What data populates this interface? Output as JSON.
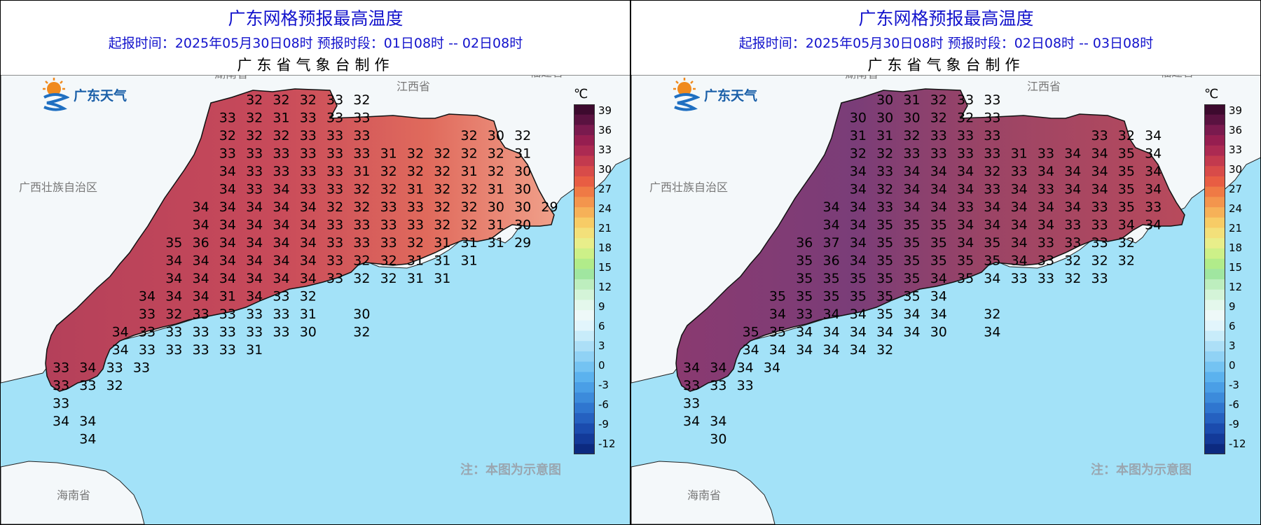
{
  "panels": [
    {
      "title": "广东网格预报最高温度",
      "subtitle": "起报时间：2025年05月30日08时   预报时段：01日08时 -- 02日08时",
      "maker": "广东省气象台制作",
      "logo_text": "广东天气",
      "note": "注：本图为示意图",
      "labels": {
        "hunan": "湖南省",
        "jiangxi": "江西省",
        "fujian": "福建省",
        "guangxi": "广西壮族自治区",
        "hainan": "海南省"
      },
      "temps": [
        [
          "",
          "",
          "",
          "",
          "",
          "",
          "",
          "32",
          "32",
          "32",
          "33",
          "32",
          "",
          "",
          "",
          "",
          "",
          ""
        ],
        [
          "",
          "",
          "",
          "",
          "",
          "",
          "33",
          "32",
          "31",
          "33",
          "33",
          "33",
          "",
          "",
          "",
          "",
          "",
          ""
        ],
        [
          "",
          "",
          "",
          "",
          "",
          "",
          "32",
          "32",
          "32",
          "33",
          "33",
          "33",
          "",
          "",
          "",
          "32",
          "30",
          "32"
        ],
        [
          "",
          "",
          "",
          "",
          "",
          "",
          "33",
          "33",
          "33",
          "33",
          "33",
          "33",
          "31",
          "32",
          "32",
          "32",
          "32",
          "31"
        ],
        [
          "",
          "",
          "",
          "",
          "",
          "",
          "34",
          "33",
          "33",
          "33",
          "33",
          "31",
          "32",
          "32",
          "32",
          "31",
          "32",
          "30"
        ],
        [
          "",
          "",
          "",
          "",
          "",
          "",
          "34",
          "33",
          "34",
          "33",
          "33",
          "32",
          "32",
          "31",
          "32",
          "32",
          "31",
          "30"
        ],
        [
          "",
          "",
          "",
          "",
          "",
          "34",
          "34",
          "34",
          "34",
          "34",
          "32",
          "32",
          "33",
          "33",
          "32",
          "32",
          "30",
          "30",
          "29"
        ],
        [
          "",
          "",
          "",
          "",
          "",
          "34",
          "34",
          "34",
          "34",
          "34",
          "33",
          "33",
          "33",
          "33",
          "32",
          "32",
          "31",
          "30"
        ],
        [
          "",
          "",
          "",
          "",
          "35",
          "36",
          "34",
          "34",
          "34",
          "34",
          "33",
          "33",
          "33",
          "32",
          "31",
          "31",
          "31",
          "29"
        ],
        [
          "",
          "",
          "",
          "",
          "34",
          "34",
          "34",
          "34",
          "34",
          "34",
          "33",
          "32",
          "32",
          "31",
          "31",
          "31",
          ""
        ],
        [
          "",
          "",
          "",
          "",
          "34",
          "34",
          "34",
          "34",
          "34",
          "34",
          "33",
          "32",
          "32",
          "31",
          "31",
          "",
          ""
        ],
        [
          "",
          "",
          "",
          "34",
          "34",
          "34",
          "31",
          "34",
          "33",
          "32",
          "",
          "",
          "",
          "",
          "",
          "",
          ""
        ],
        [
          "",
          "",
          "",
          "33",
          "32",
          "33",
          "33",
          "33",
          "33",
          "31",
          "",
          "30",
          "",
          "",
          "",
          "",
          ""
        ],
        [
          "",
          "",
          "34",
          "33",
          "33",
          "33",
          "33",
          "33",
          "33",
          "30",
          "",
          "32",
          "",
          "",
          "",
          "",
          ""
        ],
        [
          "",
          "",
          "34",
          "33",
          "33",
          "33",
          "33",
          "31",
          "",
          "",
          "",
          "",
          "",
          "",
          "",
          "",
          ""
        ],
        [
          "33",
          "34",
          "33",
          "33",
          "",
          "",
          "",
          "",
          "",
          "",
          "",
          "",
          "",
          "",
          "",
          "",
          ""
        ],
        [
          "33",
          "33",
          "32",
          "",
          "",
          "",
          "",
          "",
          "",
          "",
          "",
          "",
          "",
          "",
          "",
          "",
          ""
        ],
        [
          "33",
          "",
          "",
          "",
          "",
          "",
          "",
          "",
          "",
          "",
          "",
          "",
          "",
          "",
          "",
          "",
          ""
        ],
        [
          "34",
          "34",
          "",
          "",
          "",
          "",
          "",
          "",
          "",
          "",
          "",
          "",
          "",
          "",
          "",
          "",
          ""
        ],
        [
          "",
          "34",
          "",
          "",
          "",
          "",
          "",
          "",
          "",
          "",
          "",
          "",
          "",
          "",
          "",
          "",
          ""
        ]
      ]
    },
    {
      "title": "广东网格预报最高温度",
      "subtitle": "起报时间：2025年05月30日08时   预报时段：02日08时 -- 03日08时",
      "maker": "广东省气象台制作",
      "logo_text": "广东天气",
      "note": "注：本图为示意图",
      "labels": {
        "hunan": "湖南省",
        "jiangxi": "江西省",
        "fujian": "福建省",
        "guangxi": "广西壮族自治区",
        "hainan": "海南省"
      },
      "temps": [
        [
          "",
          "",
          "",
          "",
          "",
          "",
          "",
          "30",
          "31",
          "32",
          "33",
          "33",
          "",
          "",
          "",
          "",
          "",
          ""
        ],
        [
          "",
          "",
          "",
          "",
          "",
          "",
          "30",
          "30",
          "30",
          "32",
          "32",
          "33",
          "",
          "",
          "",
          "",
          "",
          ""
        ],
        [
          "",
          "",
          "",
          "",
          "",
          "",
          "31",
          "31",
          "32",
          "33",
          "33",
          "33",
          "",
          "",
          "",
          "33",
          "32",
          "34"
        ],
        [
          "",
          "",
          "",
          "",
          "",
          "",
          "32",
          "32",
          "33",
          "33",
          "33",
          "33",
          "31",
          "33",
          "34",
          "34",
          "35",
          "34"
        ],
        [
          "",
          "",
          "",
          "",
          "",
          "",
          "34",
          "33",
          "34",
          "34",
          "34",
          "32",
          "33",
          "34",
          "34",
          "34",
          "35",
          "34"
        ],
        [
          "",
          "",
          "",
          "",
          "",
          "",
          "34",
          "32",
          "34",
          "34",
          "34",
          "33",
          "34",
          "33",
          "34",
          "34",
          "35",
          "34"
        ],
        [
          "",
          "",
          "",
          "",
          "",
          "34",
          "34",
          "33",
          "34",
          "34",
          "33",
          "34",
          "34",
          "34",
          "34",
          "33",
          "35",
          "33"
        ],
        [
          "",
          "",
          "",
          "",
          "",
          "34",
          "34",
          "35",
          "35",
          "35",
          "34",
          "34",
          "34",
          "34",
          "33",
          "33",
          "34",
          "34"
        ],
        [
          "",
          "",
          "",
          "",
          "36",
          "37",
          "34",
          "35",
          "35",
          "35",
          "34",
          "35",
          "34",
          "33",
          "33",
          "33",
          "32",
          ""
        ],
        [
          "",
          "",
          "",
          "",
          "35",
          "36",
          "34",
          "35",
          "35",
          "35",
          "35",
          "35",
          "34",
          "33",
          "32",
          "32",
          "32",
          ""
        ],
        [
          "",
          "",
          "",
          "",
          "35",
          "35",
          "35",
          "35",
          "35",
          "34",
          "35",
          "34",
          "33",
          "33",
          "32",
          "33",
          ""
        ],
        [
          "",
          "",
          "",
          "35",
          "35",
          "35",
          "35",
          "35",
          "35",
          "34",
          "",
          "",
          "",
          "",
          "",
          "",
          ""
        ],
        [
          "",
          "",
          "",
          "34",
          "33",
          "34",
          "34",
          "35",
          "34",
          "34",
          "",
          "32",
          "",
          "",
          "",
          "",
          ""
        ],
        [
          "",
          "",
          "35",
          "35",
          "34",
          "34",
          "34",
          "34",
          "34",
          "30",
          "",
          "34",
          "",
          "",
          "",
          "",
          ""
        ],
        [
          "",
          "",
          "34",
          "34",
          "34",
          "34",
          "34",
          "32",
          "",
          "",
          "",
          "",
          "",
          "",
          "",
          "",
          ""
        ],
        [
          "34",
          "34",
          "34",
          "34",
          "",
          "",
          "",
          "",
          "",
          "",
          "",
          "",
          "",
          "",
          "",
          "",
          ""
        ],
        [
          "33",
          "33",
          "33",
          "",
          "",
          "",
          "",
          "",
          "",
          "",
          "",
          "",
          "",
          "",
          "",
          "",
          ""
        ],
        [
          "33",
          "",
          "",
          "",
          "",
          "",
          "",
          "",
          "",
          "",
          "",
          "",
          "",
          "",
          "",
          "",
          ""
        ],
        [
          "34",
          "34",
          "",
          "",
          "",
          "",
          "",
          "",
          "",
          "",
          "",
          "",
          "",
          "",
          "",
          "",
          ""
        ],
        [
          "",
          "30",
          "",
          "",
          "",
          "",
          "",
          "",
          "",
          "",
          "",
          "",
          "",
          "",
          "",
          "",
          ""
        ]
      ]
    }
  ],
  "colorbar": {
    "unit": "℃",
    "ticks": [
      "39",
      "36",
      "33",
      "30",
      "27",
      "24",
      "21",
      "18",
      "15",
      "12",
      "9",
      "6",
      "3",
      "0",
      "-3",
      "-6",
      "-9",
      "-12"
    ],
    "colors": [
      "#3d0a2e",
      "#5a1240",
      "#7a1a4e",
      "#961e50",
      "#ac2a52",
      "#c33a4e",
      "#d84b49",
      "#e85d43",
      "#ef7a45",
      "#f3954d",
      "#f6b158",
      "#f7cc66",
      "#f3e07a",
      "#e8ee8a",
      "#cdf088",
      "#b1ec8a",
      "#a0e6a0",
      "#bdeebe",
      "#d4f4d8",
      "#e4f8ec",
      "#eef9f8",
      "#e2f5fc",
      "#c8ecfa",
      "#acdff7",
      "#90d2f5",
      "#74c3f2",
      "#5bb2ee",
      "#4a9fe6",
      "#3c8bdb",
      "#2f76cf",
      "#2561c0",
      "#1b4cae",
      "#133a99",
      "#0c2a80"
    ]
  }
}
